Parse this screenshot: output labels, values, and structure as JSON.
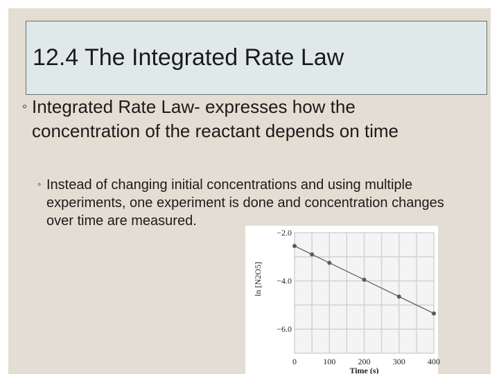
{
  "slide": {
    "title": "12.4 The Integrated Rate Law",
    "bullet1": "Integrated Rate Law- expresses how the concentration of the reactant depends on time",
    "bullet1_mark": "◦",
    "bullet2": "Instead of changing initial concentrations and using multiple experiments, one experiment is done and concentration changes over time are measured.",
    "bullet2_mark": "◦"
  },
  "colors": {
    "background": "#e3ddd3",
    "title_box": "#dfe9e9",
    "text": "#1b1b1b"
  },
  "chart_data": {
    "type": "line",
    "xlabel": "Time (s)",
    "ylabel": "ln [N2O5]",
    "xlim": [
      0,
      400
    ],
    "ylim": [
      -7.0,
      -2.0
    ],
    "x_ticks": [
      0,
      100,
      200,
      300,
      400
    ],
    "y_ticks": [
      -2.0,
      -4.0,
      -6.0
    ],
    "x_tick_labels": [
      "0",
      "100",
      "200",
      "300",
      "400"
    ],
    "y_tick_labels": [
      "−2.0",
      "−4.0",
      "−6.0"
    ],
    "grid": true,
    "series": [
      {
        "x": [
          0,
          50,
          100,
          200,
          300,
          400
        ],
        "y": [
          -2.55,
          -2.9,
          -3.25,
          -3.95,
          -4.65,
          -5.35
        ]
      }
    ]
  }
}
